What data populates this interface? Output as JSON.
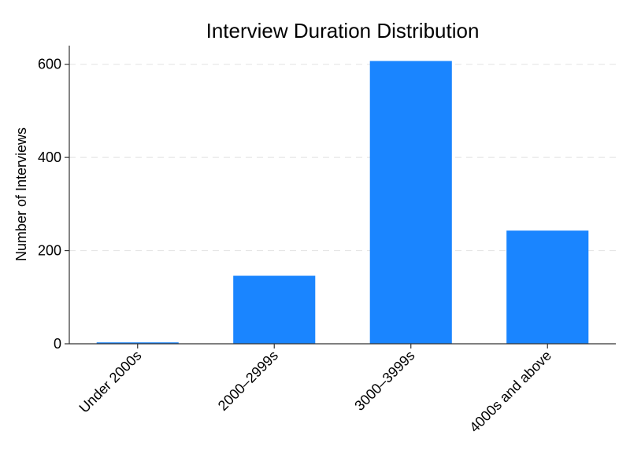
{
  "chart_data": {
    "type": "bar",
    "title": "Interview Duration Distribution",
    "xlabel": "",
    "ylabel": "Number of Interviews",
    "categories": [
      "Under 2000s",
      "2000–2999s",
      "3000–3999s",
      "4000s and above"
    ],
    "values": [
      3,
      146,
      607,
      243
    ],
    "ylim": [
      0,
      640
    ],
    "yticks": [
      0,
      200,
      400,
      600
    ],
    "bar_color": "#1a85ff",
    "grid": true,
    "legend": "none"
  }
}
